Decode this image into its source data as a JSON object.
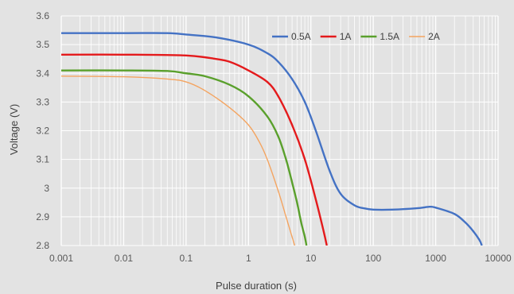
{
  "chart_data": {
    "type": "line",
    "title": "",
    "xlabel": "Pulse duration (s)",
    "ylabel": "Voltage (V)",
    "xscale": "log",
    "xlim": [
      0.001,
      10000
    ],
    "ylim": [
      2.8,
      3.6
    ],
    "x_tick_labels": [
      "0.001",
      "0.01",
      "0.1",
      "1",
      "10",
      "100",
      "1000",
      "10000"
    ],
    "y_tick_labels": [
      "2.8",
      "2.9",
      "3",
      "3.1",
      "3.2",
      "3.3",
      "3.4",
      "3.5",
      "3.6"
    ],
    "grid": true,
    "legend_position": "top-right",
    "background_color": "#e3e3e3",
    "series": [
      {
        "name": "0.5A",
        "color": "#4472c4",
        "x": [
          0.001,
          0.01,
          0.05,
          0.1,
          0.3,
          1,
          2,
          3,
          5,
          8,
          12,
          20,
          30,
          50,
          70,
          100,
          200,
          500,
          800,
          1000,
          2000,
          3000,
          4000,
          5000,
          5500
        ],
        "y": [
          3.54,
          3.54,
          3.54,
          3.535,
          3.525,
          3.5,
          3.47,
          3.44,
          3.38,
          3.3,
          3.2,
          3.06,
          2.98,
          2.94,
          2.93,
          2.925,
          2.925,
          2.93,
          2.935,
          2.932,
          2.91,
          2.88,
          2.85,
          2.82,
          2.8
        ]
      },
      {
        "name": "1A",
        "color": "#e41a1c",
        "x": [
          0.001,
          0.01,
          0.1,
          0.3,
          0.5,
          1,
          2,
          3,
          5,
          8,
          12,
          16,
          18
        ],
        "y": [
          3.465,
          3.465,
          3.462,
          3.45,
          3.44,
          3.41,
          3.37,
          3.32,
          3.22,
          3.1,
          2.96,
          2.85,
          2.8
        ]
      },
      {
        "name": "1.5A",
        "color": "#5aa02c",
        "x": [
          0.001,
          0.01,
          0.05,
          0.1,
          0.2,
          0.5,
          1,
          2,
          3,
          4,
          5,
          6,
          7,
          8,
          8.5
        ],
        "y": [
          3.41,
          3.41,
          3.408,
          3.4,
          3.39,
          3.36,
          3.32,
          3.25,
          3.18,
          3.1,
          3.02,
          2.95,
          2.88,
          2.83,
          2.8
        ]
      },
      {
        "name": "2A",
        "color": "#f4a460",
        "x": [
          0.001,
          0.01,
          0.05,
          0.1,
          0.2,
          0.5,
          1,
          1.5,
          2,
          3,
          4,
          5,
          5.5
        ],
        "y": [
          3.39,
          3.388,
          3.38,
          3.37,
          3.34,
          3.28,
          3.22,
          3.16,
          3.1,
          2.99,
          2.9,
          2.83,
          2.8
        ]
      }
    ]
  }
}
